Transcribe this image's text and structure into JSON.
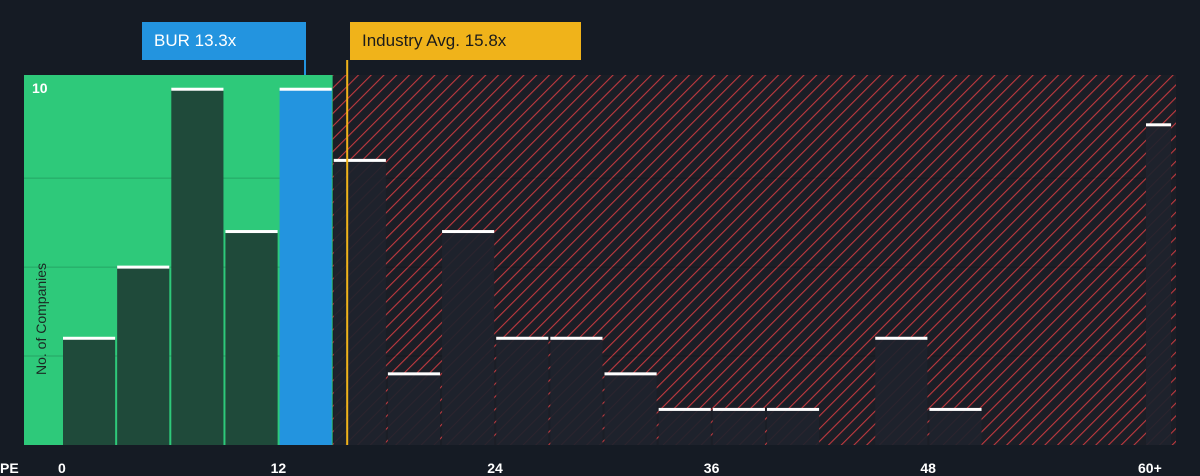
{
  "chart_data": {
    "type": "bar",
    "title": "",
    "xlabel": "PE",
    "ylabel": "No. of Companies",
    "x_ticks": [
      "0",
      "12",
      "24",
      "36",
      "48",
      "60+"
    ],
    "y_ticks": [
      "10"
    ],
    "ylim": [
      0,
      10.4
    ],
    "bins": [
      {
        "x0": 0,
        "x1": 3,
        "value": 3,
        "zone": "below"
      },
      {
        "x0": 3,
        "x1": 6,
        "value": 5,
        "zone": "below"
      },
      {
        "x0": 6,
        "x1": 9,
        "value": 10,
        "zone": "below"
      },
      {
        "x0": 9,
        "x1": 12,
        "value": 6,
        "zone": "below"
      },
      {
        "x0": 12,
        "x1": 15,
        "value": 10,
        "zone": "company"
      },
      {
        "x0": 15,
        "x1": 18,
        "value": 8,
        "zone": "above"
      },
      {
        "x0": 18,
        "x1": 21,
        "value": 2,
        "zone": "above"
      },
      {
        "x0": 21,
        "x1": 24,
        "value": 6,
        "zone": "above"
      },
      {
        "x0": 24,
        "x1": 27,
        "value": 3,
        "zone": "above"
      },
      {
        "x0": 27,
        "x1": 30,
        "value": 3,
        "zone": "above"
      },
      {
        "x0": 30,
        "x1": 33,
        "value": 2,
        "zone": "above"
      },
      {
        "x0": 33,
        "x1": 36,
        "value": 1,
        "zone": "above"
      },
      {
        "x0": 36,
        "x1": 39,
        "value": 1,
        "zone": "above"
      },
      {
        "x0": 39,
        "x1": 42,
        "value": 1,
        "zone": "above"
      },
      {
        "x0": 42,
        "x1": 45,
        "value": 0,
        "zone": "above"
      },
      {
        "x0": 45,
        "x1": 48,
        "value": 3,
        "zone": "above"
      },
      {
        "x0": 48,
        "x1": 51,
        "value": 1,
        "zone": "above"
      },
      {
        "x0": 51,
        "x1": 54,
        "value": 0,
        "zone": "above"
      },
      {
        "x0": 54,
        "x1": 57,
        "value": 0,
        "zone": "above"
      },
      {
        "x0": 57,
        "x1": 60,
        "value": 0,
        "zone": "above"
      },
      {
        "x0": 60,
        "x1": 61.5,
        "value": 9,
        "zone": "above"
      }
    ],
    "company": {
      "label": "BUR 13.3x",
      "value": 13.3
    },
    "industry": {
      "label": "Industry Avg. 15.8x",
      "value": 15.8
    },
    "colors": {
      "background": "#151b24",
      "below_zone": "#2ec97a",
      "below_bar": "#1f4a3a",
      "company_bar": "#2394df",
      "above_zone_stripe": "#c0393f",
      "above_bar": "#1e232c",
      "industry_line": "#f0b31a",
      "bar_cap": "#ffffff"
    }
  }
}
